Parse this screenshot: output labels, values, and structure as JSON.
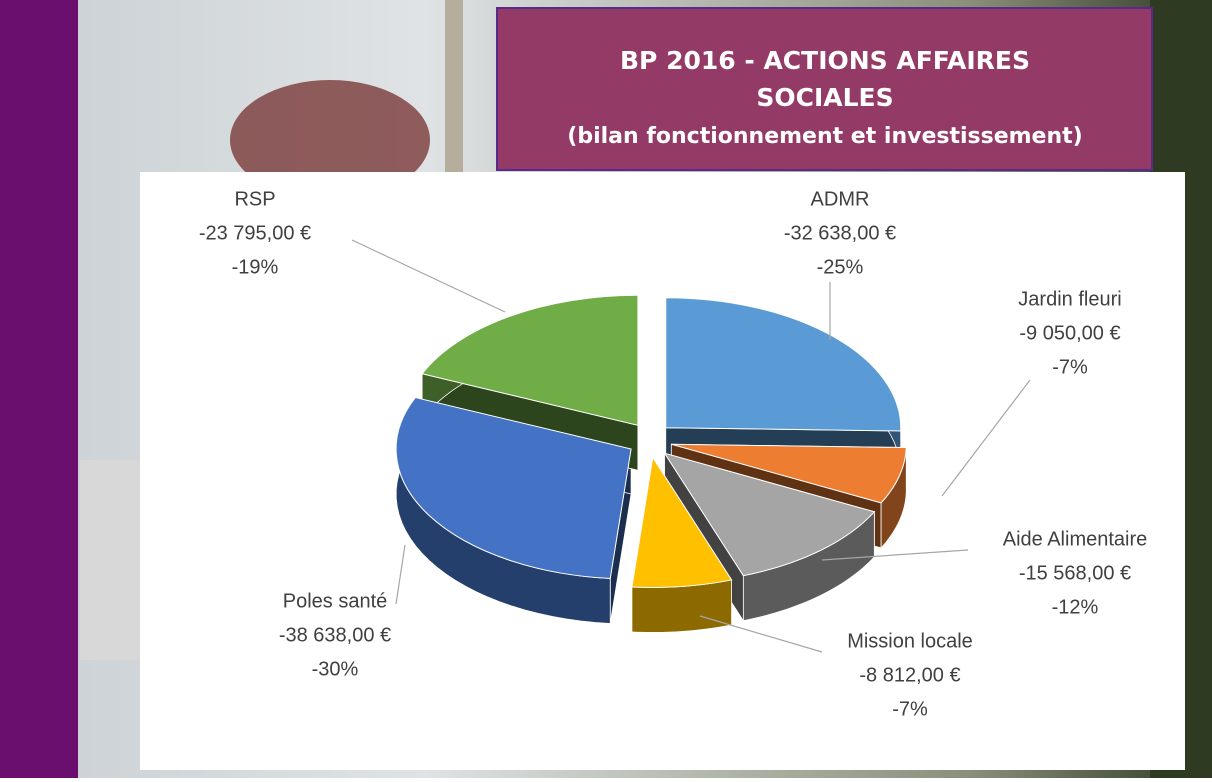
{
  "chart_data": {
    "type": "pie",
    "title_lines": [
      "BP 2016 - ACTIONS AFFAIRES",
      "SOCIALES",
      "(bilan fonctionnement et investissement)"
    ],
    "categories": [
      "ADMR",
      "Jardin fleuri",
      "Aide Alimentaire",
      "Mission locale",
      "Poles santé",
      "RSP"
    ],
    "values": [
      -32638,
      -9050,
      -15568,
      -8812,
      -38638,
      -23795
    ],
    "value_labels": [
      "-32 638,00 €",
      "-9 050,00 €",
      "-15 568,00 €",
      "-8 812,00 €",
      "-38 638,00 €",
      "-23 795,00 €"
    ],
    "percent_values": [
      -25,
      -7,
      -12,
      -7,
      -30,
      -19
    ],
    "percent_labels": [
      "-25%",
      "-7%",
      "-12%",
      "-7%",
      "-30%",
      "-19%"
    ],
    "colors": [
      "#5b9bd5",
      "#ed7d31",
      "#a5a5a5",
      "#ffc000",
      "#4472c4",
      "#70ad47"
    ]
  }
}
